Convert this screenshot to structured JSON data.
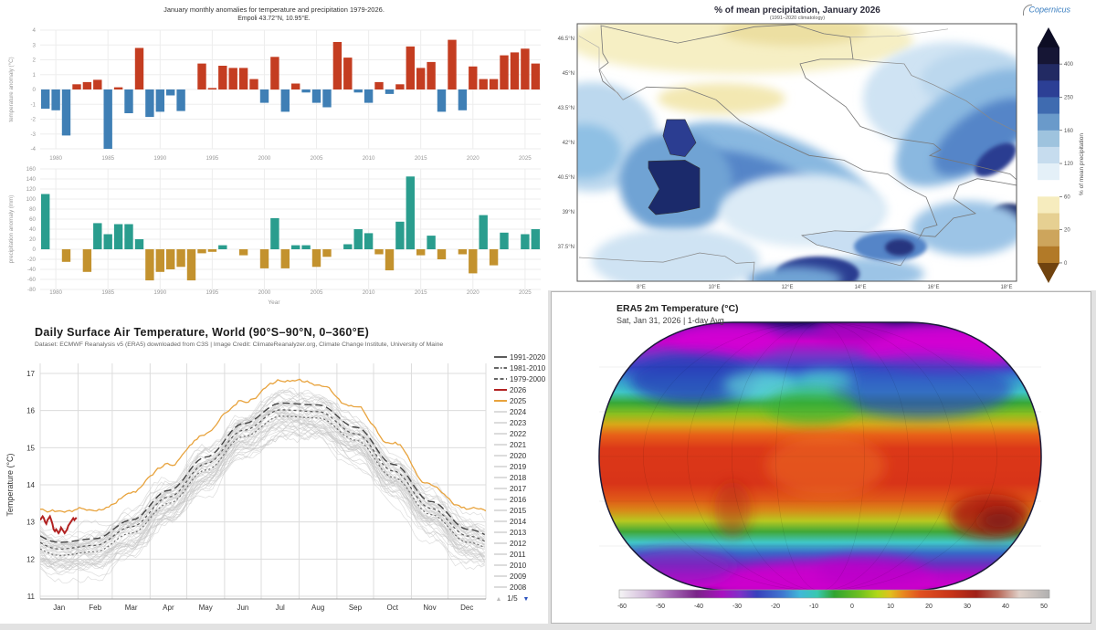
{
  "chart_data": [
    {
      "id": "january-temperature-anomaly",
      "type": "bar",
      "title": "January monthly anomalies for temperature and precipitation 1979-2026.",
      "subtitle": "Empoli 43.72°N, 10.95°E.",
      "ylabel": "temperature anomaly (°C)",
      "year_start": 1979,
      "values": [
        -1.3,
        -1.4,
        -3.1,
        0.35,
        0.5,
        0.65,
        -4.0,
        0.15,
        -1.6,
        2.8,
        -1.85,
        -1.5,
        -0.4,
        -1.45,
        0,
        1.75,
        0.1,
        1.6,
        1.45,
        1.45,
        0.7,
        -0.9,
        2.2,
        -1.5,
        0.4,
        -0.2,
        -0.9,
        -1.2,
        3.2,
        2.15,
        -0.2,
        -0.9,
        0.5,
        -0.3,
        0.35,
        2.9,
        1.45,
        1.85,
        -1.5,
        3.35,
        -1.4,
        1.55,
        0.7,
        0.7,
        2.3,
        2.5,
        2.75,
        1.75
      ],
      "yticks": [
        -4,
        -3,
        -2,
        -1,
        0,
        1,
        2,
        3,
        4
      ],
      "xticks": [
        1980,
        1985,
        1990,
        1995,
        2000,
        2005,
        2010,
        2015,
        2020,
        2025
      ],
      "ylim": [
        -4.4,
        4.4
      ],
      "pos_color": "#c43d21",
      "neg_color": "#3f7fb5"
    },
    {
      "id": "january-precipitation-anomaly",
      "type": "bar",
      "ylabel": "precipitation anomaly (mm)",
      "xlabel": "Year",
      "year_start": 1979,
      "values": [
        110,
        0,
        -25,
        0,
        -45,
        52,
        30,
        50,
        50,
        20,
        -62,
        -45,
        -40,
        -35,
        -62,
        -8,
        -5,
        8,
        0,
        -12,
        0,
        -38,
        62,
        -38,
        8,
        8,
        -35,
        -15,
        0,
        10,
        40,
        32,
        -10,
        -42,
        55,
        145,
        -12,
        27,
        -20,
        0,
        -10,
        -48,
        68,
        -32,
        33,
        0,
        30,
        40
      ],
      "yticks": [
        -80,
        -60,
        -40,
        -20,
        0,
        20,
        40,
        60,
        80,
        100,
        120,
        140,
        160
      ],
      "xticks": [
        1980,
        1985,
        1990,
        1995,
        2000,
        2005,
        2010,
        2015,
        2020,
        2025
      ],
      "ylim": [
        -90,
        170
      ],
      "pos_color": "#2a9d8e",
      "neg_color": "#c3922e"
    },
    {
      "id": "italy-percent-mean-precipitation",
      "type": "heatmap",
      "title": "% of mean precipitation, January 2026",
      "subtitle": "(1991–2020 climatology)",
      "logo_text": "Copernicus",
      "colorbar_label": "% of mean precipitation",
      "colorbar_ticks": [
        400,
        250,
        160,
        120,
        60,
        20,
        0
      ],
      "colorbar_colors_top_to_bottom": [
        "#161635",
        "#222a63",
        "#2c3f95",
        "#3f6bb0",
        "#6a9aca",
        "#9ec3de",
        "#c6dcee",
        "#e4f0f8",
        "#ffffff",
        "#f6ecbe",
        "#e6d092",
        "#cda55c",
        "#b27a28"
      ],
      "colorbar_tip_top": "#0d0d24",
      "colorbar_tip_bottom": "#70430f",
      "lat_ticks": [
        "46.5°N",
        "45°N",
        "43.5°N",
        "42°N",
        "40.5°N",
        "39°N",
        "37.5°N"
      ],
      "lon_ticks": [
        "8°E",
        "10°E",
        "12°E",
        "14°E",
        "16°E",
        "18°E"
      ]
    },
    {
      "id": "daily-surface-air-temperature-world",
      "type": "line",
      "title": "Daily Surface Air Temperature, World (90°S–90°N, 0–360°E)",
      "subtitle": "Dataset: ECMWF Reanalysis v5 (ERA5) downloaded from C3S | Image Credit: ClimateReanalyzer.org, Climate Change Institute, University of Maine",
      "ylabel": "Temperature (°C)",
      "yticks": [
        11,
        12,
        13,
        14,
        15,
        16,
        17
      ],
      "months": [
        "Jan",
        "Feb",
        "Mar",
        "Apr",
        "May",
        "Jun",
        "Jul",
        "Aug",
        "Sep",
        "Oct",
        "Nov",
        "Dec"
      ],
      "climatology_1991_2020_monthly": [
        12.45,
        12.55,
        13.05,
        13.85,
        14.75,
        15.65,
        16.2,
        16.15,
        15.55,
        14.55,
        13.55,
        12.8
      ],
      "climatology_1981_2010_monthly": [
        12.27,
        12.37,
        12.87,
        13.67,
        14.57,
        15.47,
        16.02,
        15.97,
        15.37,
        14.37,
        13.37,
        12.62
      ],
      "climatology_1979_2000_monthly": [
        12.1,
        12.2,
        12.7,
        13.5,
        14.4,
        15.3,
        15.85,
        15.8,
        15.2,
        14.2,
        13.2,
        12.45
      ],
      "y2025_monthly": [
        13.3,
        13.35,
        13.85,
        14.55,
        15.35,
        16.3,
        16.8,
        16.7,
        16.1,
        15.1,
        14.05,
        13.4
      ],
      "y2026_daily_jan": [
        13.05,
        13.1,
        13.15,
        13.1,
        13.0,
        12.95,
        13.05,
        13.1,
        13.15,
        13.05,
        12.95,
        12.8,
        12.75,
        12.8,
        12.75,
        12.7,
        12.75,
        12.85,
        12.8,
        12.75,
        12.7,
        12.75,
        12.8,
        12.9,
        12.95,
        13.0,
        13.05,
        13.1,
        13.05,
        13.1,
        13.1
      ],
      "gray_year_range": [
        1979,
        2024
      ],
      "legend": {
        "ref_lines": [
          {
            "label": "1991-2020",
            "dash": "solid"
          },
          {
            "label": "1981-2010",
            "dash": "dashdot"
          },
          {
            "label": "1979-2000",
            "dash": "dashed"
          }
        ],
        "highlights": [
          {
            "label": "2026",
            "color": "#b22222"
          },
          {
            "label": "2025",
            "color": "#e8a33d"
          }
        ],
        "years": [
          "2024",
          "2023",
          "2022",
          "2021",
          "2020",
          "2019",
          "2018",
          "2017",
          "2016",
          "2015",
          "2014",
          "2013",
          "2012",
          "2011",
          "2010",
          "2009",
          "2008"
        ],
        "pagination": "1/5"
      },
      "colors": {
        "c2026": "#b22222",
        "c2025": "#e8a33d",
        "gray": "#c6c6c6",
        "climatology": "#3a3a3a"
      }
    },
    {
      "id": "era5-2m-temperature-world",
      "type": "heatmap",
      "title": "ERA5 2m Temperature (°C)",
      "subtitle": "Sat, Jan 31, 2026 | 1-day Avg",
      "colorbar_ticks": [
        -60,
        -50,
        -40,
        -30,
        -20,
        -10,
        0,
        10,
        20,
        30,
        40,
        50
      ],
      "colorbar_stops": [
        [
          0,
          "#f5f5f5"
        ],
        [
          0.06,
          "#d4bcdc"
        ],
        [
          0.12,
          "#a468b4"
        ],
        [
          0.18,
          "#7a2488"
        ],
        [
          0.24,
          "#a810c0"
        ],
        [
          0.28,
          "#8030c8"
        ],
        [
          0.32,
          "#3840bc"
        ],
        [
          0.38,
          "#4078d0"
        ],
        [
          0.42,
          "#40b8d8"
        ],
        [
          0.46,
          "#38c8b0"
        ],
        [
          0.5,
          "#30a430"
        ],
        [
          0.56,
          "#70c020"
        ],
        [
          0.6,
          "#b0d818"
        ],
        [
          0.63,
          "#e0c020"
        ],
        [
          0.66,
          "#e88820"
        ],
        [
          0.7,
          "#e05020"
        ],
        [
          0.77,
          "#c83418"
        ],
        [
          0.83,
          "#a02018"
        ],
        [
          0.88,
          "#b86858"
        ],
        [
          0.93,
          "#e0d0c8"
        ],
        [
          1,
          "#b0b0b0"
        ]
      ],
      "map_gradient_stops": [
        [
          0,
          "#20086a"
        ],
        [
          0.03,
          "#7a10b8"
        ],
        [
          0.07,
          "#cc00cc"
        ],
        [
          0.12,
          "#8030c8"
        ],
        [
          0.17,
          "#3848c8"
        ],
        [
          0.22,
          "#38a0d0"
        ],
        [
          0.26,
          "#40c8c8"
        ],
        [
          0.3,
          "#38a838"
        ],
        [
          0.34,
          "#88c020"
        ],
        [
          0.38,
          "#d8a818"
        ],
        [
          0.42,
          "#e86018"
        ],
        [
          0.47,
          "#dc3818"
        ],
        [
          0.6,
          "#d83418"
        ],
        [
          0.66,
          "#e05818"
        ],
        [
          0.7,
          "#d88818"
        ],
        [
          0.74,
          "#b8c820"
        ],
        [
          0.78,
          "#40a838"
        ],
        [
          0.82,
          "#40c8c8"
        ],
        [
          0.86,
          "#3868c8"
        ],
        [
          0.9,
          "#6830c0"
        ],
        [
          0.94,
          "#b008c8"
        ],
        [
          0.98,
          "#cc00cc"
        ],
        [
          1,
          "#8c00a0"
        ]
      ]
    }
  ]
}
